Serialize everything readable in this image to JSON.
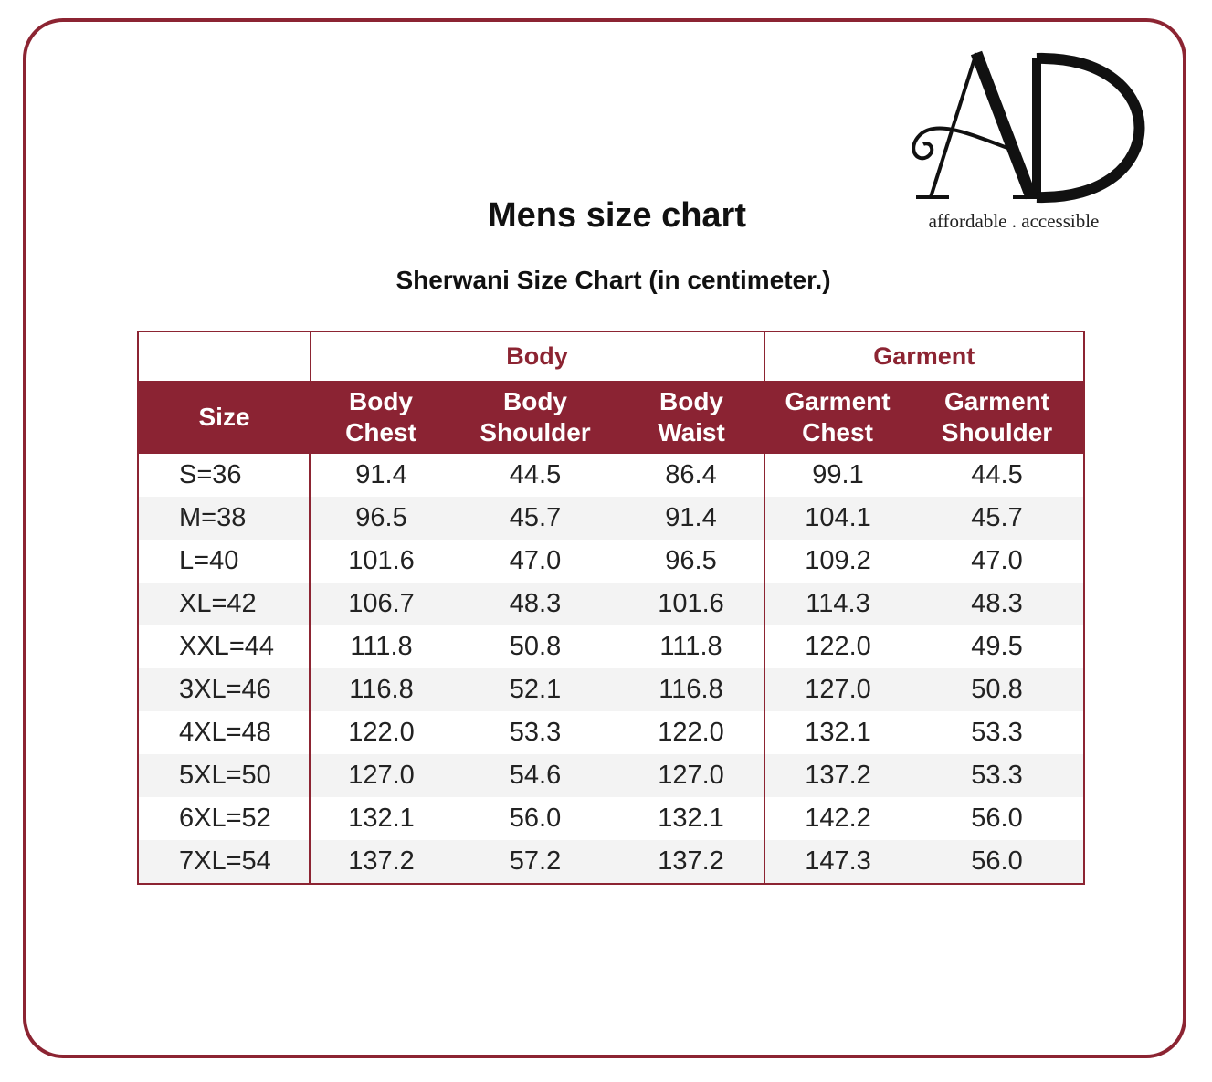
{
  "brand": {
    "logo_letters": "AD",
    "tagline": "affordable . accessible",
    "color": "#8c2432"
  },
  "title": "Mens size chart",
  "subtitle": "Sherwani Size Chart (in centimeter.)",
  "table": {
    "groups": {
      "body": "Body",
      "garment": "Garment"
    },
    "headers": {
      "size": "Size",
      "body_chest": [
        "Body",
        "Chest"
      ],
      "body_shoulder": [
        "Body",
        "Shoulder"
      ],
      "body_waist": [
        "Body",
        "Waist"
      ],
      "garment_chest": [
        "Garment",
        "Chest"
      ],
      "garment_shoulder": [
        "Garment",
        "Shoulder"
      ]
    },
    "rows": [
      [
        "S=36",
        "91.4",
        "44.5",
        "86.4",
        "99.1",
        "44.5"
      ],
      [
        "M=38",
        "96.5",
        "45.7",
        "91.4",
        "104.1",
        "45.7"
      ],
      [
        "L=40",
        "101.6",
        "47.0",
        "96.5",
        "109.2",
        "47.0"
      ],
      [
        "XL=42",
        "106.7",
        "48.3",
        "101.6",
        "114.3",
        "48.3"
      ],
      [
        "XXL=44",
        "111.8",
        "50.8",
        "111.8",
        "122.0",
        "49.5"
      ],
      [
        "3XL=46",
        "116.8",
        "52.1",
        "116.8",
        "127.0",
        "50.8"
      ],
      [
        "4XL=48",
        "122.0",
        "53.3",
        "122.0",
        "132.1",
        "53.3"
      ],
      [
        "5XL=50",
        "127.0",
        "54.6",
        "127.0",
        "137.2",
        "53.3"
      ],
      [
        "6XL=52",
        "132.1",
        "56.0",
        "132.1",
        "142.2",
        "56.0"
      ],
      [
        "7XL=54",
        "137.2",
        "57.2",
        "137.2",
        "147.3",
        "56.0"
      ]
    ]
  }
}
